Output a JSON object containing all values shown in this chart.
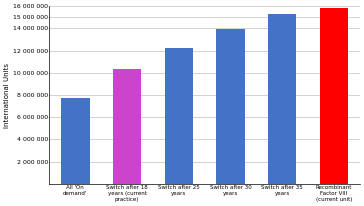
{
  "categories": [
    "All 'On\ndemand'",
    "Switch after 18\nyears (current\npractice)",
    "Switch after 25\nyears",
    "Switch after 30\nyears",
    "Switch after 35\nyears",
    "Recombinant\nFactor VIII\n(current unit)"
  ],
  "values": [
    7700000,
    10300000,
    12200000,
    13900000,
    15300000,
    15800000
  ],
  "bar_colors": [
    "#4472C4",
    "#CC44CC",
    "#4472C4",
    "#4472C4",
    "#4472C4",
    "#FF0000"
  ],
  "ylabel": "International Units",
  "ylim": [
    0,
    16000000
  ],
  "yticks": [
    2000000,
    4000000,
    6000000,
    8000000,
    10000000,
    12000000,
    14000000,
    15000000,
    16000000
  ],
  "ytick_labels": [
    "2 000 000",
    "4 000 000",
    "6 000 000",
    "8 000 000",
    "10 000 000",
    "12 000 000",
    "14 000 000",
    "15 000 000",
    "16 000 000"
  ],
  "grid_color": "#C0C0C0",
  "background_color": "#FFFFFF",
  "bar_width": 0.55,
  "figsize": [
    3.64,
    2.06
  ],
  "dpi": 100
}
